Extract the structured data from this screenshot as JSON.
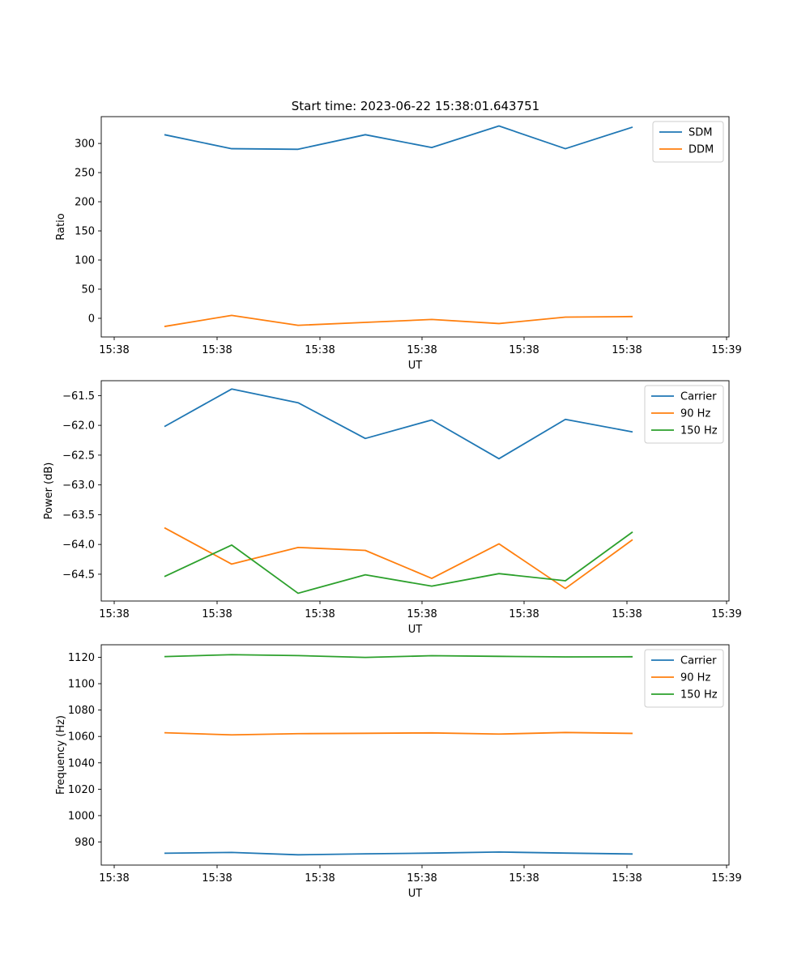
{
  "figure": {
    "title": "Start time: 2023-06-22 15:38:01.643751"
  },
  "colors": {
    "blue": "#1f77b4",
    "orange": "#ff7f0e",
    "green": "#2ca02c"
  },
  "chart_data": [
    {
      "type": "line",
      "xlabel": "UT",
      "ylabel": "Ratio",
      "x_tick_labels": [
        "15:38",
        "15:38",
        "15:38",
        "15:38",
        "15:38",
        "15:38",
        "15:39"
      ],
      "ylim": [
        -32,
        346
      ],
      "y_ticks": [
        0,
        50,
        100,
        150,
        200,
        250,
        300
      ],
      "grid": false,
      "legend": "top-right",
      "series": [
        {
          "name": "SDM",
          "color": "#1f77b4",
          "values": [
            315,
            291,
            290,
            315,
            293,
            330,
            291,
            328
          ]
        },
        {
          "name": "DDM",
          "color": "#ff7f0e",
          "values": [
            -14,
            5,
            -12,
            -7,
            -2,
            -9,
            2,
            3
          ]
        }
      ]
    },
    {
      "type": "line",
      "xlabel": "UT",
      "ylabel": "Power (dB)",
      "x_tick_labels": [
        "15:38",
        "15:38",
        "15:38",
        "15:38",
        "15:38",
        "15:38",
        "15:39"
      ],
      "ylim": [
        -64.95,
        -61.25
      ],
      "y_ticks": [
        -61.5,
        -62.0,
        -62.5,
        -63.0,
        -63.5,
        -64.0,
        -64.5
      ],
      "grid": false,
      "legend": "top-right",
      "series": [
        {
          "name": "Carrier",
          "color": "#1f77b4",
          "values": [
            -62.02,
            -61.39,
            -61.62,
            -62.22,
            -61.91,
            -62.56,
            -61.9,
            -62.11
          ]
        },
        {
          "name": "90 Hz",
          "color": "#ff7f0e",
          "values": [
            -63.72,
            -64.33,
            -64.05,
            -64.1,
            -64.57,
            -63.99,
            -64.74,
            -63.92
          ]
        },
        {
          "name": "150 Hz",
          "color": "#2ca02c",
          "values": [
            -64.54,
            -64.01,
            -64.82,
            -64.51,
            -64.7,
            -64.49,
            -64.61,
            -63.79
          ]
        }
      ]
    },
    {
      "type": "line",
      "xlabel": "UT",
      "ylabel": "Frequency (Hz)",
      "x_tick_labels": [
        "15:38",
        "15:38",
        "15:38",
        "15:38",
        "15:38",
        "15:38",
        "15:39"
      ],
      "ylim": [
        962.5,
        1129.5
      ],
      "y_ticks": [
        980,
        1000,
        1020,
        1040,
        1060,
        1080,
        1100,
        1120
      ],
      "grid": false,
      "legend": "top-right",
      "series": [
        {
          "name": "Carrier",
          "color": "#1f77b4",
          "values": [
            971.5,
            972.1,
            970.3,
            971.0,
            971.6,
            972.4,
            971.6,
            970.9
          ]
        },
        {
          "name": "90 Hz",
          "color": "#ff7f0e",
          "values": [
            1062.8,
            1061.2,
            1062.1,
            1062.4,
            1062.7,
            1061.8,
            1063.0,
            1062.3
          ]
        },
        {
          "name": "150 Hz",
          "color": "#2ca02c",
          "values": [
            1120.5,
            1122.0,
            1121.3,
            1119.9,
            1121.2,
            1120.7,
            1120.3,
            1120.4
          ]
        }
      ]
    }
  ]
}
